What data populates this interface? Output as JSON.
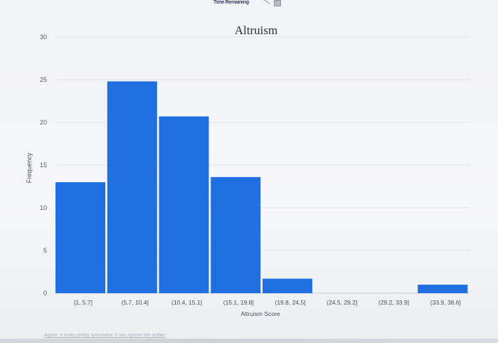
{
  "topbar": {
    "time_remaining_label": "Time Remaining",
    "line_icon": "slash-icon",
    "calculator_icon": "calculator-icon"
  },
  "chart_data": {
    "type": "bar",
    "title": "Altruism",
    "xlabel": "Altruism Score",
    "ylabel": "Frequency",
    "categories": [
      "[1, 5.7]",
      "(5.7, 10.4]",
      "(10.4, 15.1]",
      "(15.1, 19.8]",
      "(19.8, 24.5]",
      "(24.5, 29.2]",
      "(29.2, 33.9]",
      "(33.9, 38.6]"
    ],
    "values": [
      13,
      24.8,
      20.7,
      13.6,
      1.7,
      0,
      0,
      1
    ],
    "ylim": [
      0,
      30
    ],
    "yticks": [
      0,
      5,
      10,
      15,
      20,
      25,
      30
    ],
    "grid": true,
    "bar_color": "#1f6fe0"
  },
  "footer_note": "Agree, it looks pretty symmetric if you ignore the outlier"
}
